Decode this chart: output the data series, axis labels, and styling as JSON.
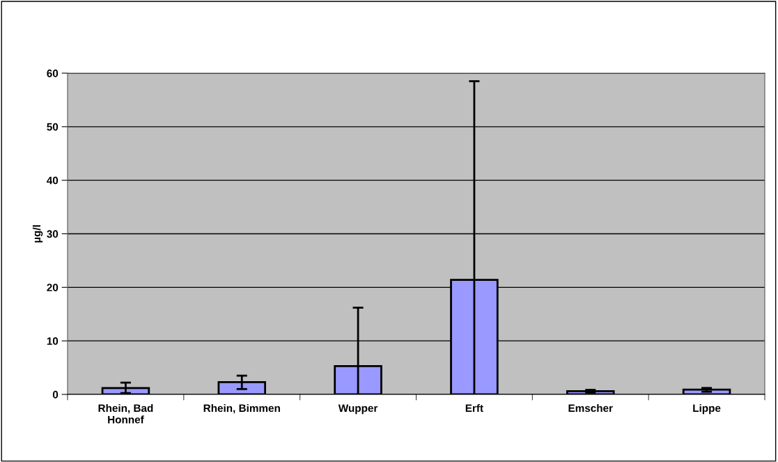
{
  "chart_data": {
    "type": "bar",
    "ylabel": "µg/l",
    "categories": [
      "Rhein, Bad\nHonnef",
      "Rhein, Bimmen",
      "Wupper",
      "Erft",
      "Emscher",
      "Lippe"
    ],
    "values": [
      1.2,
      2.3,
      5.3,
      21.4,
      0.6,
      0.9
    ],
    "errors": [
      [
        0.25,
        2.2
      ],
      [
        1.0,
        3.5
      ],
      [
        0,
        16.2
      ],
      [
        0,
        58.5
      ],
      [
        0.35,
        0.85
      ],
      [
        0.5,
        1.2
      ]
    ],
    "color": "#9999ff",
    "ylim": [
      0,
      60
    ],
    "yticks": [
      0,
      10,
      20,
      30,
      40,
      50,
      60
    ],
    "grid": "y"
  }
}
